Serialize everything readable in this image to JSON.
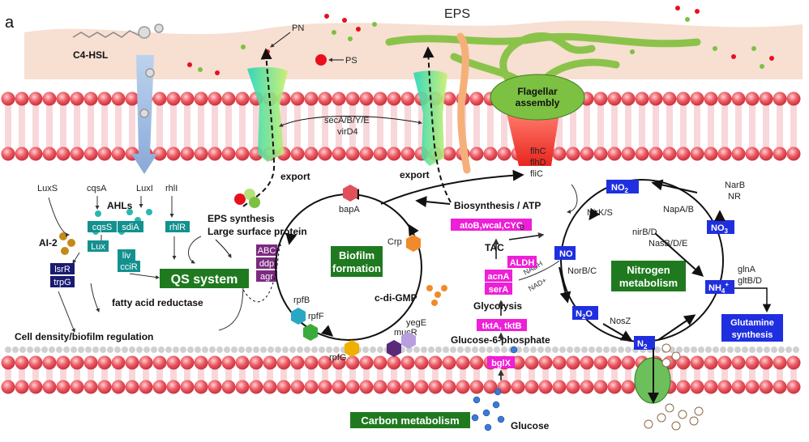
{
  "panel_label": "a",
  "colors": {
    "membrane_head": "#e8535c",
    "membrane_tail": "#f3b6bb",
    "eps_band": "#f7dfd2",
    "qs_green": "#1f7a1f",
    "teal": "#13918f",
    "navy": "#1b1b72",
    "purple": "#7b2a80",
    "magenta": "#ee1fd6",
    "blue": "#1f2fe0",
    "flagella": "#8bc34a"
  },
  "top": {
    "eps": "EPS",
    "c4hsl": "C4-HSL",
    "pn": "PN",
    "ps": "PS",
    "flagellar": [
      "Flagellar",
      "assembly"
    ],
    "secA": "secA/B/Y/E",
    "virD4": "virD4",
    "export1": "export",
    "export2": "export",
    "flhC": "flhC",
    "flhD": "flhD",
    "fliC": "fliC"
  },
  "qs": {
    "luxS": "LuxS",
    "cqsA": "cqsA",
    "luxI": "LuxI",
    "rhlI": "rhlI",
    "ahls": "AHLs",
    "ai2": "AI-2",
    "boxes": {
      "cqsS": "cqsS",
      "sdiA": "sdiA",
      "rhlR": "rhlR",
      "lux": "Lux",
      "liv": "liv",
      "cciR": "cciR",
      "lsrR": "lsrR",
      "trpG": "trpG"
    },
    "qs_system": "QS system",
    "eps_synthesis": "EPS synthesis",
    "large_surface": "Large surface protein",
    "abc": [
      "ABC",
      "ddp",
      "agr"
    ],
    "fatty": "fatty acid reductase",
    "cell_density": "Cell density/biofilm regulation"
  },
  "biofilm": {
    "title": [
      "Biofilm",
      "formation"
    ],
    "bapA": "bapA",
    "crp": "Crp",
    "cdigmp": "c-di-GMP",
    "rpfB": "rpfB",
    "rpfF": "rpfF",
    "rpfG": "rpfG",
    "mucR": "mucR",
    "yegE": "yegE"
  },
  "carbon": {
    "biosynthesis": "Biosynthesis / ATP",
    "genes1": "atoB,wcaI,CYC",
    "tac": "TAC",
    "electron": "e",
    "nadh": "NADH",
    "nadplus": "NAD+",
    "aldh": "ALDH",
    "acnA": "acnA",
    "serA": "serA",
    "glycolysis": "Glycolysis",
    "tktA": "tktA, tktB",
    "g6p": "Glucose-6-phosphate",
    "bglX": "bglX",
    "carbon_metab": "Carbon metabolism",
    "glucose": "Glucose"
  },
  "nitrogen": {
    "no2": "NO",
    "no2_sub": "2",
    "no3": "NO",
    "no3_sub": "3",
    "no": "NO",
    "n2o": "N",
    "n2o_sub": "2",
    "n2o_o": "O",
    "n2": "N",
    "n2_sub": "2",
    "nh4": "NH",
    "nh4_sub": "4",
    "nh4_sup": "+",
    "narB": "NarB",
    "nr": "NR",
    "napAB": "NapA/B",
    "nirKS": "NirK/S",
    "nirBD": "nirB/D",
    "nasBDE": "NasB/D/E",
    "norBC": "NorB/C",
    "nosZ": "NosZ",
    "glnA": "glnA",
    "gltBD": "gltB/D",
    "title": [
      "Nitrogen",
      "metabolism"
    ],
    "glutamine": [
      "Glutamine",
      "synthesis"
    ]
  }
}
